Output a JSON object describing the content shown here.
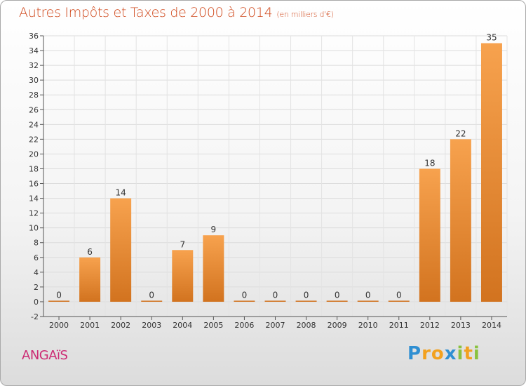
{
  "header": {
    "title": "Autres Impôts et Taxes de 2000 à 2014",
    "subtitle": "(en milliers d'€)"
  },
  "footer": {
    "commune": "ANGAïS",
    "logo_letters": [
      "P",
      "r",
      "o",
      "x",
      "i",
      "t",
      "i"
    ],
    "logo_colors": [
      "#2f8fd2",
      "#f2a11f",
      "#f2a11f",
      "#2f8fd2",
      "#89c23f",
      "#f2a11f",
      "#89c23f"
    ]
  },
  "chart_data": {
    "type": "bar",
    "title": "Autres Impôts et Taxes de 2000 à 2014",
    "subtitle": "(en milliers d'€)",
    "categories": [
      "2000",
      "2001",
      "2002",
      "2003",
      "2004",
      "2005",
      "2006",
      "2007",
      "2008",
      "2009",
      "2010",
      "2011",
      "2012",
      "2013",
      "2014"
    ],
    "values": [
      0,
      6,
      14,
      0,
      7,
      9,
      0,
      0,
      0,
      0,
      0,
      0,
      18,
      22,
      35
    ],
    "ylim": [
      -2,
      36
    ],
    "yticks": [
      -2,
      0,
      2,
      4,
      6,
      8,
      10,
      12,
      14,
      16,
      18,
      20,
      22,
      24,
      26,
      28,
      30,
      32,
      34,
      36
    ],
    "grid": true,
    "bar_color_top": "#f7a24e",
    "bar_color_bottom": "#d2731f"
  }
}
